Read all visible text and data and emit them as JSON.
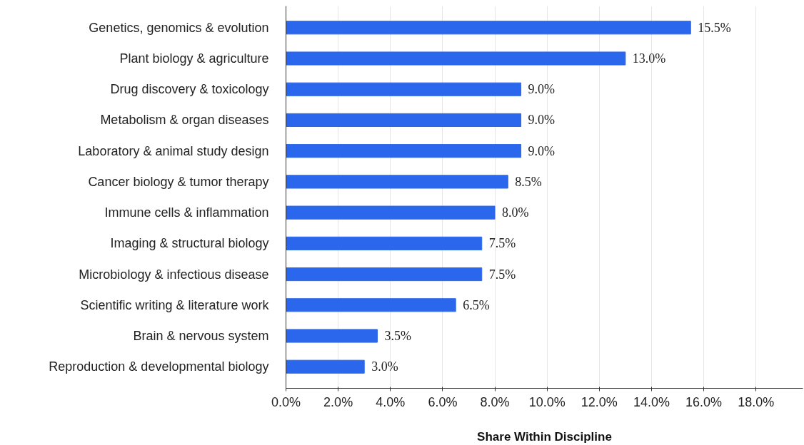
{
  "chart_data": {
    "type": "bar",
    "orientation": "horizontal",
    "xlabel": "Share Within Discipline",
    "categories": [
      "Genetics, genomics & evolution",
      "Plant biology & agriculture",
      "Drug discovery & toxicology",
      "Metabolism & organ diseases",
      "Laboratory & animal study design",
      "Cancer biology & tumor therapy",
      "Immune cells & inflammation",
      "Imaging & structural biology",
      "Microbiology & infectious disease",
      "Scientific writing & literature work",
      "Brain & nervous system",
      "Reproduction & developmental biology"
    ],
    "values": [
      15.5,
      13.0,
      9.0,
      9.0,
      9.0,
      8.5,
      8.0,
      7.5,
      7.5,
      6.5,
      3.5,
      3.0
    ],
    "value_labels": [
      "15.5%",
      "13.0%",
      "9.0%",
      "9.0%",
      "9.0%",
      "8.5%",
      "8.0%",
      "7.5%",
      "7.5%",
      "6.5%",
      "3.5%",
      "3.0%"
    ],
    "color": "#2b67ec",
    "xlim": [
      0,
      19.8
    ],
    "xticks": [
      {
        "value": 0,
        "label": "0.0%"
      },
      {
        "value": 2,
        "label": "2.0%"
      },
      {
        "value": 4,
        "label": "4.0%"
      },
      {
        "value": 6,
        "label": "6.0%"
      },
      {
        "value": 8,
        "label": "8.0%"
      },
      {
        "value": 10,
        "label": "10.0%"
      },
      {
        "value": 12,
        "label": "12.0%"
      },
      {
        "value": 14,
        "label": "14.0%"
      },
      {
        "value": 16,
        "label": "16.0%"
      },
      {
        "value": 18,
        "label": "18.0%"
      }
    ],
    "grid": "x"
  }
}
